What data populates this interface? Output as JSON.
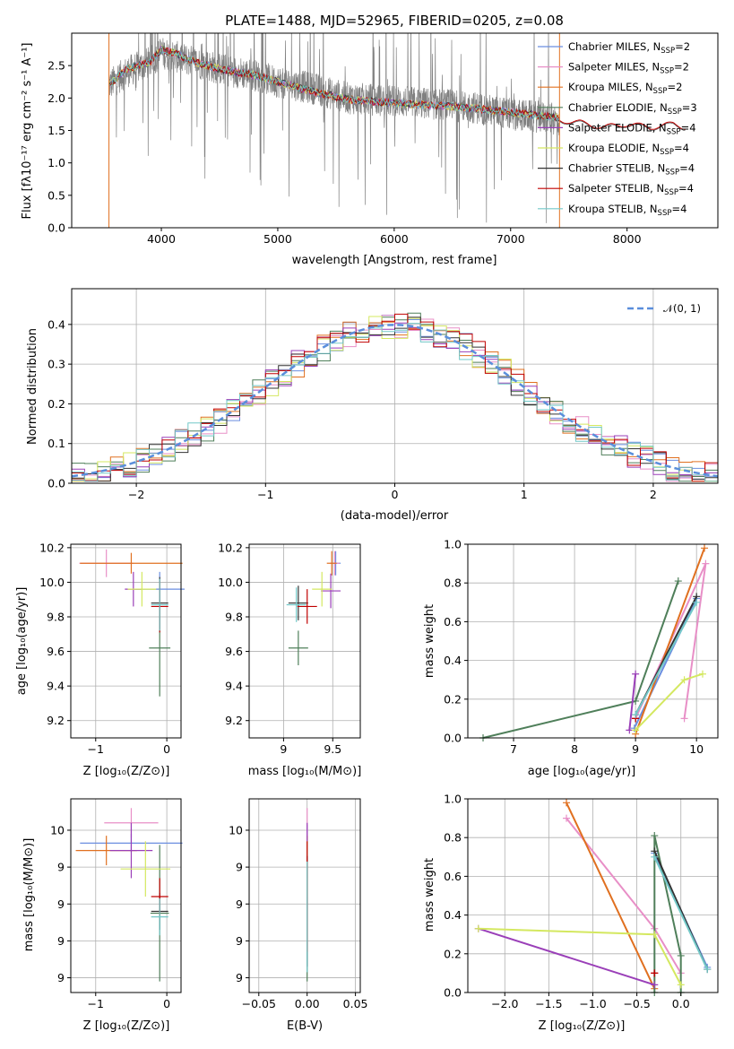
{
  "title": "PLATE=1488, MJD=52965, FIBERID=0205, z=0.08",
  "colors": [
    "#6b8ee0",
    "#e88fc7",
    "#e07020",
    "#4f7f5a",
    "#9a3fb8",
    "#d4e860",
    "#333333",
    "#c00000",
    "#72c8c8"
  ],
  "legend_labels": [
    "Chabrier MILES, N",
    "Salpeter MILES, N",
    "Kroupa MILES, N",
    "Chabrier ELODIE, N",
    "Salpeter ELODIE, N",
    "Kroupa ELODIE, N",
    "Chabrier STELIB, N",
    "Salpeter STELIB, N",
    "Kroupa STELIB, N"
  ],
  "legend_sub": "SSP",
  "legend_nssp": [
    "=2",
    "=2",
    "=2",
    "=3",
    "=4",
    "=4",
    "=4",
    "=4",
    "=4"
  ],
  "chart_data": [
    {
      "type": "line",
      "name": "spectrum",
      "xlabel": "wavelength [Angstrom, rest frame]",
      "ylabel": "Flux [fλ10⁻¹⁷ erg cm⁻² s⁻¹ A⁻¹]",
      "xlim": [
        3230,
        8780
      ],
      "ylim": [
        0,
        3.0
      ],
      "xticks": [
        4000,
        5000,
        6000,
        7000,
        8000
      ],
      "yticks": [
        0.0,
        0.5,
        1.0,
        1.5,
        2.0,
        2.5
      ],
      "data_trace": {
        "x": [
          3550,
          3700,
          3900,
          4000,
          4100,
          4300,
          4500,
          4800,
          5000,
          5300,
          5600,
          6000,
          6400,
          6700,
          7000,
          7300,
          7500,
          7800,
          8000,
          8200,
          8500
        ],
        "y": [
          2.2,
          2.4,
          2.55,
          2.7,
          2.65,
          2.55,
          2.45,
          2.35,
          2.25,
          2.15,
          2.0,
          1.95,
          1.9,
          1.85,
          1.75,
          1.7,
          1.62,
          1.58,
          1.55,
          1.55,
          1.52
        ]
      },
      "model_trace": {
        "x": [
          3550,
          3700,
          3900,
          4000,
          4100,
          4300,
          4500,
          4800,
          5000,
          5300,
          5600,
          6000,
          6400,
          6700,
          7000,
          7300,
          7420
        ],
        "y": [
          2.2,
          2.45,
          2.55,
          2.75,
          2.7,
          2.55,
          2.45,
          2.35,
          2.25,
          2.1,
          1.98,
          1.92,
          1.88,
          1.84,
          1.78,
          1.72,
          1.7
        ]
      },
      "tail_trace": {
        "x": [
          7420,
          7600,
          7800,
          8000,
          8200,
          8400,
          8500
        ],
        "y": [
          1.66,
          1.62,
          1.55,
          1.6,
          1.55,
          1.6,
          1.55
        ]
      }
    },
    {
      "type": "histogram",
      "name": "residual-distribution",
      "xlabel": "(data-model)/error",
      "ylabel": "Normed distribution",
      "xlim": [
        -2.5,
        2.5
      ],
      "ylim": [
        0,
        0.49
      ],
      "xticks": [
        -2,
        -1,
        0,
        1,
        2
      ],
      "yticks": [
        0.0,
        0.1,
        0.2,
        0.3,
        0.4
      ],
      "legend": "𝒩(0, 1)",
      "bin_edges_range": [
        -2.5,
        2.5
      ],
      "bins": 50
    },
    {
      "type": "scatter",
      "name": "age-vs-Z",
      "xlabel": "Z [log₁₀(Z/Z⊙)]",
      "ylabel": "age  [log₁₀(age/yr)]",
      "xlim": [
        -1.35,
        0.2
      ],
      "ylim": [
        9.1,
        10.22
      ],
      "xticks": [
        -1,
        0
      ],
      "yticks": [
        9.2,
        9.4,
        9.6,
        9.8,
        10.0,
        10.2
      ],
      "points": [
        {
          "x": -0.1,
          "y": 9.96,
          "xerr": 0.35,
          "yerr": 0.1
        },
        {
          "x": -0.85,
          "y": 10.11,
          "xerr": 0.38,
          "yerr": 0.08
        },
        {
          "x": -0.5,
          "y": 10.11,
          "xerr": 0.72,
          "yerr": 0.06
        },
        {
          "x": -0.1,
          "y": 9.62,
          "xerr": 0.15,
          "yerr": 0.28
        },
        {
          "x": -0.47,
          "y": 9.96,
          "xerr": 0.12,
          "yerr": 0.1
        },
        {
          "x": -0.35,
          "y": 9.96,
          "xerr": 0.2,
          "yerr": 0.1
        },
        {
          "x": -0.1,
          "y": 9.88,
          "xerr": 0.12,
          "yerr": 0.15
        },
        {
          "x": -0.1,
          "y": 9.86,
          "xerr": 0.12,
          "yerr": 0.15
        },
        {
          "x": -0.1,
          "y": 9.87,
          "xerr": 0.12,
          "yerr": 0.15
        }
      ]
    },
    {
      "type": "scatter",
      "name": "age-vs-mass",
      "xlabel": "mass [log₁₀(M/M⊙)]",
      "ylabel": "",
      "xlim": [
        8.65,
        9.78
      ],
      "ylim": [
        9.1,
        10.22
      ],
      "xticks": [
        9.0,
        9.5
      ],
      "yticks": [
        9.2,
        9.4,
        9.6,
        9.8,
        10.0,
        10.2
      ],
      "points": [
        {
          "x": 9.53,
          "y": 10.11,
          "xerr": 0.05,
          "yerr": 0.07
        },
        {
          "x": 9.52,
          "y": 10.11,
          "xerr": 0.05,
          "yerr": 0.07
        },
        {
          "x": 9.49,
          "y": 10.11,
          "xerr": 0.05,
          "yerr": 0.07
        },
        {
          "x": 9.15,
          "y": 9.62,
          "xerr": 0.1,
          "yerr": 0.1
        },
        {
          "x": 9.48,
          "y": 9.95,
          "xerr": 0.1,
          "yerr": 0.1
        },
        {
          "x": 9.39,
          "y": 9.96,
          "xerr": 0.1,
          "yerr": 0.1
        },
        {
          "x": 9.15,
          "y": 9.88,
          "xerr": 0.1,
          "yerr": 0.1
        },
        {
          "x": 9.24,
          "y": 9.86,
          "xerr": 0.1,
          "yerr": 0.1
        },
        {
          "x": 9.13,
          "y": 9.87,
          "xerr": 0.1,
          "yerr": 0.1
        }
      ]
    },
    {
      "type": "line",
      "name": "mass-weight-vs-age",
      "xlabel": "age  [log₁₀(age/yr)]",
      "ylabel": "mass weight",
      "xlim": [
        6.25,
        10.35
      ],
      "ylim": [
        0,
        1.0
      ],
      "xticks": [
        7,
        8,
        9,
        10
      ],
      "yticks": [
        0.0,
        0.2,
        0.4,
        0.6,
        0.8,
        1.0
      ],
      "series": [
        {
          "x": [
            8.98,
            10.0
          ],
          "y": [
            0.05,
            0.72
          ]
        },
        {
          "x": [
            9.0,
            10.15,
            9.8
          ],
          "y": [
            0.1,
            0.9,
            0.1
          ]
        },
        {
          "x": [
            9.0,
            10.13
          ],
          "y": [
            0.02,
            0.98
          ]
        },
        {
          "x": [
            6.5,
            9.0,
            9.7
          ],
          "y": [
            0.0,
            0.19,
            0.81
          ]
        },
        {
          "x": [
            8.9,
            9.0
          ],
          "y": [
            0.04,
            0.33
          ]
        },
        {
          "x": [
            9.0,
            9.8,
            10.1
          ],
          "y": [
            0.04,
            0.3,
            0.33
          ]
        },
        {
          "x": [
            9.0,
            10.0
          ],
          "y": [
            0.12,
            0.73
          ]
        },
        {
          "x": [
            9.0,
            9.0
          ],
          "y": [
            0.1,
            0.1
          ]
        },
        {
          "x": [
            9.0,
            10.0
          ],
          "y": [
            0.12,
            0.7
          ]
        }
      ]
    },
    {
      "type": "scatter",
      "name": "mass-vs-Z",
      "xlabel": "Z [log₁₀(Z/Z⊙)]",
      "ylabel": "mass [log₁₀(M/M⊙)]",
      "xlim": [
        -1.35,
        0.2
      ],
      "ylim": [
        8.72,
        9.77
      ],
      "xticks": [
        -1,
        0
      ],
      "yticks": [
        8.8,
        9.0,
        9.2,
        9.4,
        9.6
      ],
      "points": [
        {
          "x": -0.5,
          "y": 9.53,
          "xerr": 0.72,
          "yerr": 0.05
        },
        {
          "x": -0.5,
          "y": 9.64,
          "xerr": 0.38,
          "yerr": 0.08
        },
        {
          "x": -0.85,
          "y": 9.49,
          "xerr": 0.43,
          "yerr": 0.08
        },
        {
          "x": -0.1,
          "y": 9.15,
          "xerr": 0.13,
          "yerr": 0.37
        },
        {
          "x": -0.5,
          "y": 9.49,
          "xerr": 0.3,
          "yerr": 0.15
        },
        {
          "x": -0.3,
          "y": 9.39,
          "xerr": 0.35,
          "yerr": 0.15
        },
        {
          "x": -0.1,
          "y": 9.16,
          "xerr": 0.12,
          "yerr": 0.1
        },
        {
          "x": -0.1,
          "y": 9.24,
          "xerr": 0.12,
          "yerr": 0.1
        },
        {
          "x": -0.1,
          "y": 9.13,
          "xerr": 0.12,
          "yerr": 0.1
        }
      ]
    },
    {
      "type": "scatter",
      "name": "mass-vs-EBV",
      "xlabel": "E(B-V)",
      "ylabel": "",
      "xlim": [
        -0.06,
        0.055
      ],
      "ylim": [
        8.72,
        9.77
      ],
      "xticks": [
        -0.05,
        0.0,
        0.05
      ],
      "xticklabels": [
        "−0.05",
        "0.00",
        "0.05"
      ],
      "yticks": [
        8.8,
        9.0,
        9.2,
        9.4,
        9.6
      ],
      "points": [
        {
          "x": 0.0,
          "y": 9.53,
          "xerr": 0.0,
          "yerr": 0.1
        },
        {
          "x": 0.0,
          "y": 9.64,
          "xerr": 0.0,
          "yerr": 0.08
        },
        {
          "x": 0.0,
          "y": 9.49,
          "xerr": 0.0,
          "yerr": 0.08
        },
        {
          "x": 0.0,
          "y": 9.15,
          "xerr": 0.0,
          "yerr": 0.37
        },
        {
          "x": 0.0,
          "y": 9.49,
          "xerr": 0.0,
          "yerr": 0.15
        },
        {
          "x": 0.0,
          "y": 9.39,
          "xerr": 0.0,
          "yerr": 0.15
        },
        {
          "x": 0.0,
          "y": 9.16,
          "xerr": 0.0,
          "yerr": 0.3
        },
        {
          "x": 0.0,
          "y": 9.24,
          "xerr": 0.0,
          "yerr": 0.3
        },
        {
          "x": 0.0,
          "y": 9.13,
          "xerr": 0.0,
          "yerr": 0.3
        }
      ]
    },
    {
      "type": "line",
      "name": "mass-weight-vs-Z",
      "xlabel": "Z [log₁₀(Z/Z⊙)]",
      "ylabel": "mass weight",
      "xlim": [
        -2.42,
        0.42
      ],
      "ylim": [
        0,
        1.0
      ],
      "xticks": [
        -2.0,
        -1.5,
        -1.0,
        -0.5,
        0.0
      ],
      "xticklabels": [
        "−2.0",
        "−1.5",
        "−1.0",
        "−0.5",
        "0.0"
      ],
      "yticks": [
        0.0,
        0.2,
        0.4,
        0.6,
        0.8,
        1.0
      ],
      "series": [
        {
          "x": [
            -0.3,
            0.3
          ],
          "y": [
            0.72,
            0.13
          ]
        },
        {
          "x": [
            -1.3,
            -0.3,
            0.0
          ],
          "y": [
            0.9,
            0.33,
            0.1
          ]
        },
        {
          "x": [
            -1.3,
            -0.3
          ],
          "y": [
            0.98,
            0.02
          ]
        },
        {
          "x": [
            -0.3,
            -0.3,
            0.0,
            0.0
          ],
          "y": [
            0.0,
            0.81,
            0.19,
            0.0
          ]
        },
        {
          "x": [
            -2.3,
            -0.3
          ],
          "y": [
            0.33,
            0.04
          ]
        },
        {
          "x": [
            -2.3,
            -0.3,
            0.0
          ],
          "y": [
            0.33,
            0.3,
            0.04
          ]
        },
        {
          "x": [
            -0.3,
            0.3
          ],
          "y": [
            0.73,
            0.12
          ]
        },
        {
          "x": [
            -0.3,
            -0.3
          ],
          "y": [
            0.1,
            0.1
          ]
        },
        {
          "x": [
            -0.3,
            0.3
          ],
          "y": [
            0.7,
            0.12
          ]
        }
      ]
    }
  ]
}
